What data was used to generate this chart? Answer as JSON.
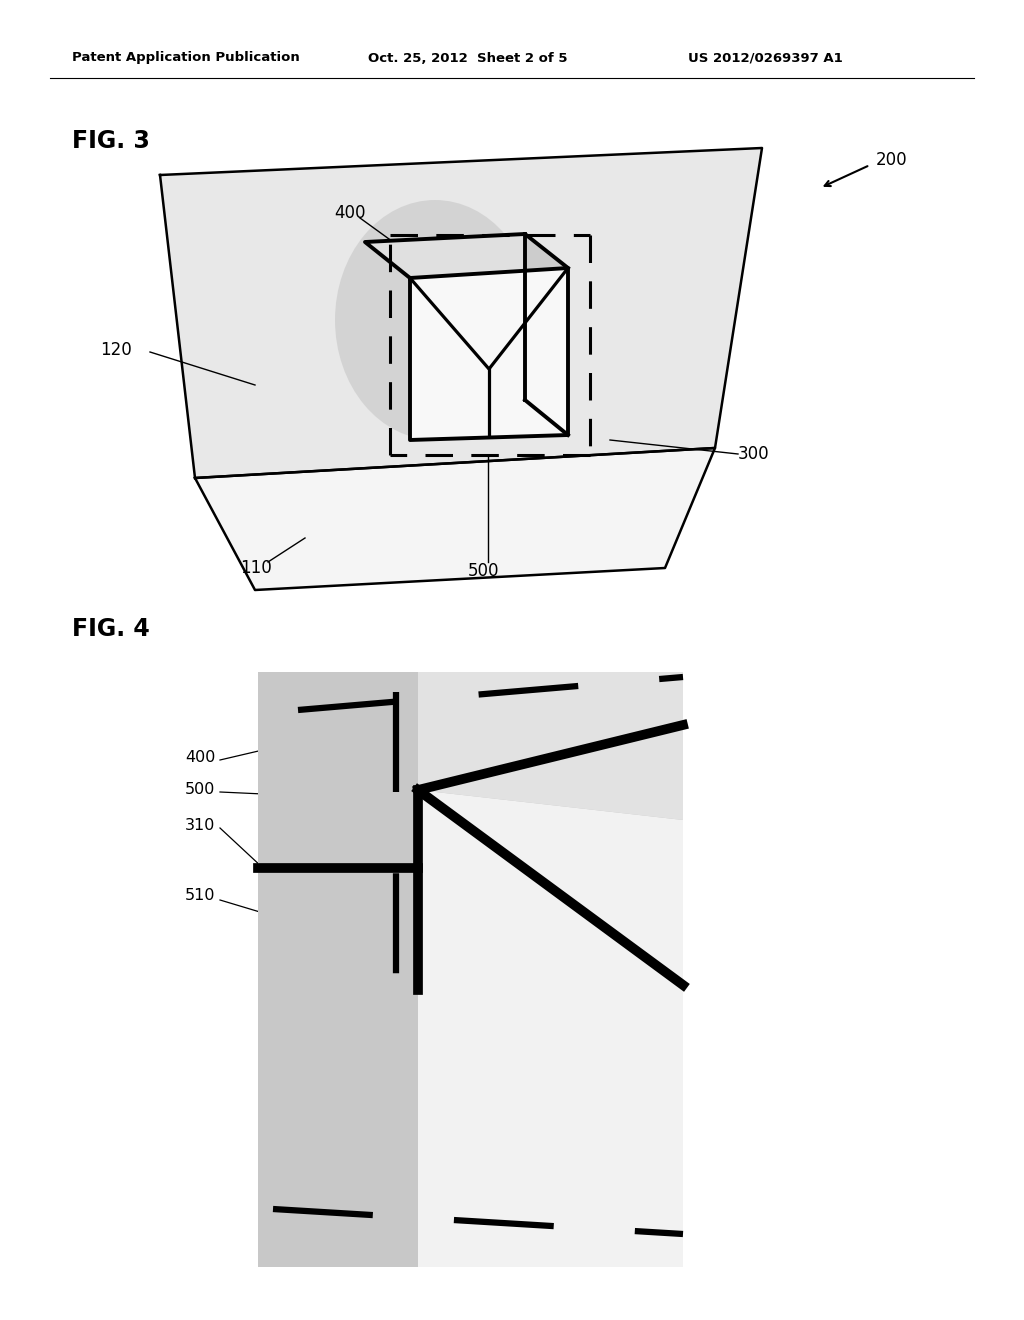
{
  "bg_color": "#ffffff",
  "header_text": "Patent Application Publication",
  "header_date": "Oct. 25, 2012  Sheet 2 of 5",
  "header_patent": "US 2012/0269397 A1",
  "fig3_label": "FIG. 3",
  "fig4_label": "FIG. 4",
  "wall_color": "#e8e8e8",
  "floor_color": "#f0f0f0",
  "glow_color": "#d0d0d0",
  "cube_right_color": "#cccccc",
  "cube_top_color": "#e0e0e0",
  "cube_front_color": "#f8f8f8",
  "fig4_bg_color": "#c8c8c8",
  "fig4_wall_color": "#d4d4d4",
  "fig4_face_color": "#f0f0f0"
}
